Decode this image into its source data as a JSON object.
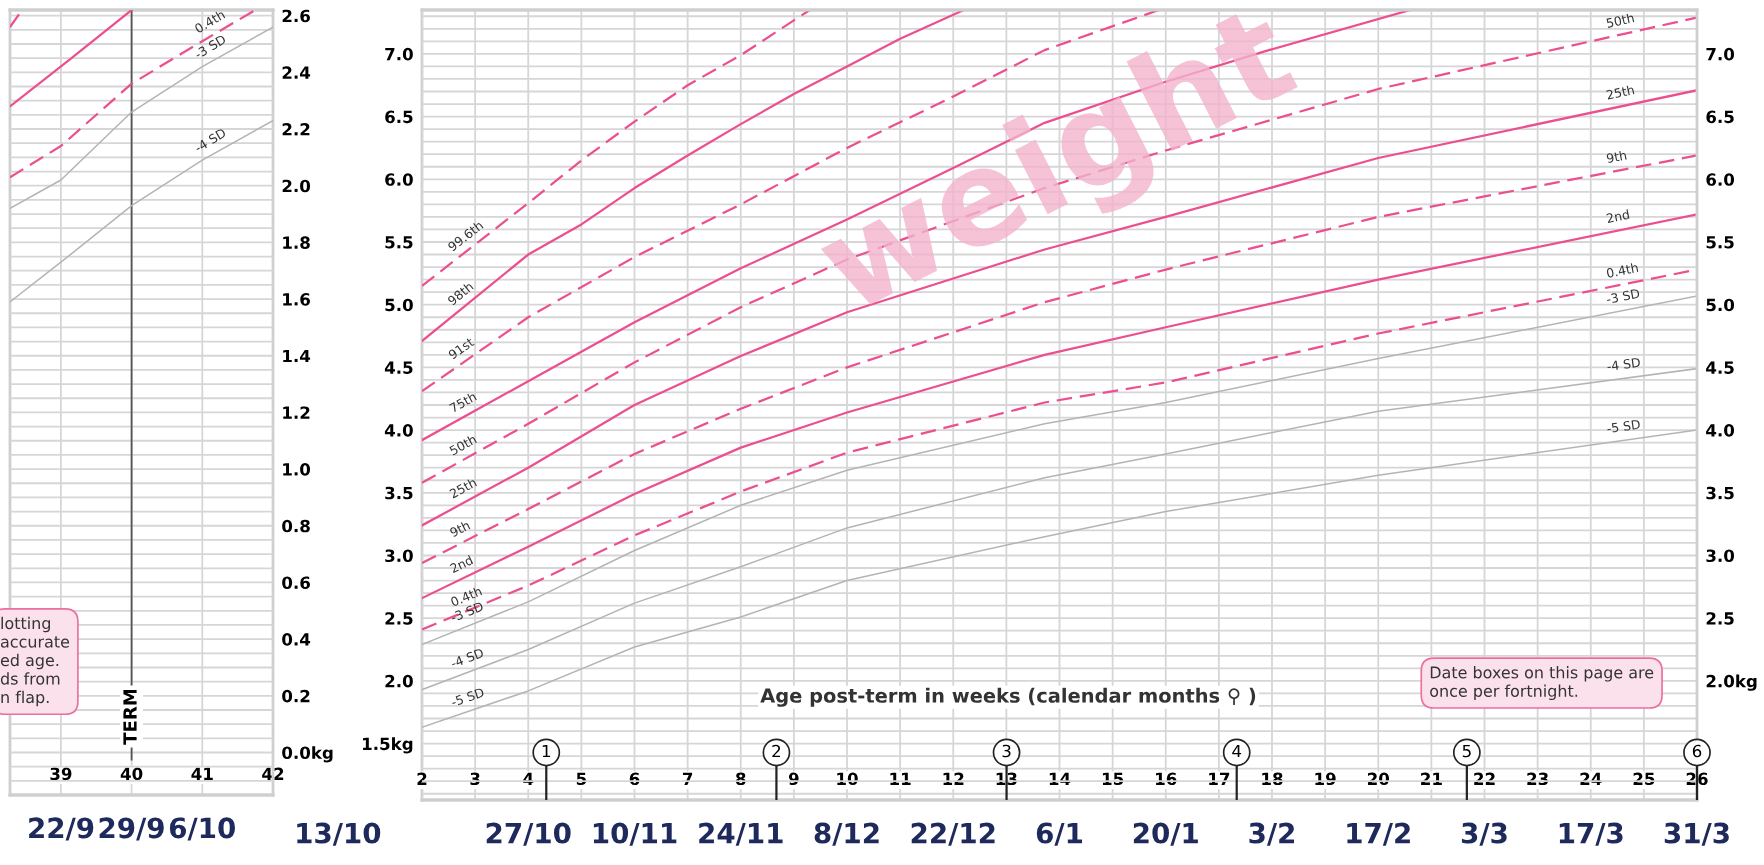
{
  "chart_data": [
    {
      "type": "line",
      "xlim": [
        38.28,
        42
      ],
      "xticks": [
        39,
        40,
        41,
        42
      ],
      "grid": true,
      "y2lim": [
        -0.15,
        2.62
      ],
      "y2ticks": [
        {
          "value": -0.1,
          "label": null
        },
        {
          "value": -0.05,
          "label": null
        },
        {
          "value": 0,
          "label": "0.0kg"
        },
        {
          "value": 0.05,
          "label": null
        },
        {
          "value": 0.1,
          "label": null
        },
        {
          "value": 0.15,
          "label": null
        },
        {
          "value": 0.2,
          "label": "0.2"
        },
        {
          "value": 0.25,
          "label": null
        },
        {
          "value": 0.3,
          "label": null
        },
        {
          "value": 0.35,
          "label": null
        },
        {
          "value": 0.4,
          "label": "0.4"
        },
        {
          "value": 0.45,
          "label": null
        },
        {
          "value": 0.5,
          "label": null
        },
        {
          "value": 0.55,
          "label": null
        },
        {
          "value": 0.6,
          "label": "0.6"
        },
        {
          "value": 0.65,
          "label": null
        },
        {
          "value": 0.7,
          "label": null
        },
        {
          "value": 0.75,
          "label": null
        },
        {
          "value": 0.8,
          "label": "0.8"
        },
        {
          "value": 0.85,
          "label": null
        },
        {
          "value": 0.9,
          "label": null
        },
        {
          "value": 0.95,
          "label": null
        },
        {
          "value": 1.0,
          "label": "1.0"
        },
        {
          "value": 1.05,
          "label": null
        },
        {
          "value": 1.1,
          "label": null
        },
        {
          "value": 1.15,
          "label": null
        },
        {
          "value": 1.2,
          "label": "1.2"
        },
        {
          "value": 1.25,
          "label": null
        },
        {
          "value": 1.3,
          "label": null
        },
        {
          "value": 1.35,
          "label": null
        },
        {
          "value": 1.4,
          "label": "1.4"
        },
        {
          "value": 1.45,
          "label": null
        },
        {
          "value": 1.5,
          "label": null
        },
        {
          "value": 1.55,
          "label": null
        },
        {
          "value": 1.6,
          "label": "1.6"
        },
        {
          "value": 1.65,
          "label": null
        },
        {
          "value": 1.7,
          "label": null
        },
        {
          "value": 1.75,
          "label": null
        },
        {
          "value": 1.8,
          "label": "1.8"
        },
        {
          "value": 1.85,
          "label": null
        },
        {
          "value": 1.9,
          "label": null
        },
        {
          "value": 1.95,
          "label": null
        },
        {
          "value": 2.0,
          "label": "2.0"
        },
        {
          "value": 2.05,
          "label": null
        },
        {
          "value": 2.1,
          "label": null
        },
        {
          "value": 2.15,
          "label": null
        },
        {
          "value": 2.2,
          "label": "2.2"
        },
        {
          "value": 2.25,
          "label": null
        },
        {
          "value": 2.3,
          "label": null
        },
        {
          "value": 2.35,
          "label": null
        },
        {
          "value": 2.4,
          "label": "2.4"
        },
        {
          "value": 2.45,
          "label": null
        },
        {
          "value": 2.5,
          "label": null
        },
        {
          "value": 2.55,
          "label": null
        },
        {
          "value": 2.6,
          "label": "2.6"
        }
      ],
      "ref_lines": [
        {
          "axis": "x",
          "value": 40,
          "label": "TERM",
          "color": "#555555"
        }
      ],
      "series": [
        {
          "axis": "y2",
          "color": "#ec4f8f",
          "line_style": "dashed",
          "x": [
            38.28,
            38.45
          ],
          "values": [
            2.56,
            2.62
          ]
        },
        {
          "axis": "y2",
          "color": "#ec4f8f",
          "line_style": "solid",
          "x": [
            38.28,
            39.15,
            40.0
          ],
          "values": [
            2.28,
            2.45,
            2.62
          ]
        },
        {
          "axis": "y2",
          "name": "0.4th",
          "color": "#ec4f8f",
          "line_style": "dashed",
          "x": [
            38.28,
            39,
            40,
            41,
            41.75
          ],
          "values": [
            2.03,
            2.14,
            2.36,
            2.51,
            2.62
          ]
        },
        {
          "axis": "y2",
          "name": "-3 SD",
          "color": "#b4b4b4",
          "line_style": "solid",
          "x": [
            38.28,
            39,
            40,
            41,
            42
          ],
          "values": [
            1.92,
            2.02,
            2.26,
            2.42,
            2.56
          ]
        },
        {
          "axis": "y2",
          "name": "-4 SD",
          "color": "#b4b4b4",
          "line_style": "solid",
          "x": [
            38.28,
            39,
            40,
            41,
            42
          ],
          "values": [
            1.59,
            1.73,
            1.93,
            2.09,
            2.23
          ]
        }
      ],
      "annotations": [
        "lotting\naccurate\ned age.\nds from\nn flap.",
        "22/9",
        "29/9",
        "6/10"
      ]
    },
    {
      "type": "line",
      "title": "weight",
      "xlabel": "Age post-term in weeks (calendar months ⚲ )",
      "grid": true,
      "xlim": [
        2,
        26
      ],
      "xticks": [
        2,
        3,
        4,
        5,
        6,
        7,
        8,
        9,
        10,
        11,
        12,
        13,
        14,
        15,
        16,
        17,
        18,
        19,
        20,
        21,
        22,
        23,
        24,
        25,
        26
      ],
      "x2lim": [
        0.46,
        6.0
      ],
      "x2ticks": [
        1,
        2,
        3,
        4,
        5,
        6
      ],
      "ylim": [
        1.05,
        7.35
      ],
      "yticks": [
        {
          "value": 1.1,
          "label": null
        },
        {
          "value": 1.2,
          "label": null
        },
        {
          "value": 1.3,
          "label": null
        },
        {
          "value": 1.4,
          "label": null
        },
        {
          "value": 1.5,
          "label": "1.5kg"
        },
        {
          "value": 1.6,
          "label": null
        },
        {
          "value": 1.7,
          "label": null
        },
        {
          "value": 1.8,
          "label": null
        },
        {
          "value": 1.9,
          "label": null
        },
        {
          "value": 2.0,
          "label": "2.0"
        },
        {
          "value": 2.1,
          "label": null
        },
        {
          "value": 2.2,
          "label": null
        },
        {
          "value": 2.3,
          "label": null
        },
        {
          "value": 2.4,
          "label": null
        },
        {
          "value": 2.5,
          "label": "2.5"
        },
        {
          "value": 2.6,
          "label": null
        },
        {
          "value": 2.7,
          "label": null
        },
        {
          "value": 2.8,
          "label": null
        },
        {
          "value": 2.9,
          "label": null
        },
        {
          "value": 3.0,
          "label": "3.0"
        },
        {
          "value": 3.1,
          "label": null
        },
        {
          "value": 3.2,
          "label": null
        },
        {
          "value": 3.3,
          "label": null
        },
        {
          "value": 3.4,
          "label": null
        },
        {
          "value": 3.5,
          "label": "3.5"
        },
        {
          "value": 3.6,
          "label": null
        },
        {
          "value": 3.7,
          "label": null
        },
        {
          "value": 3.8,
          "label": null
        },
        {
          "value": 3.9,
          "label": null
        },
        {
          "value": 4.0,
          "label": "4.0"
        },
        {
          "value": 4.1,
          "label": null
        },
        {
          "value": 4.2,
          "label": null
        },
        {
          "value": 4.3,
          "label": null
        },
        {
          "value": 4.4,
          "label": null
        },
        {
          "value": 4.5,
          "label": "4.5"
        },
        {
          "value": 4.6,
          "label": null
        },
        {
          "value": 4.7,
          "label": null
        },
        {
          "value": 4.8,
          "label": null
        },
        {
          "value": 4.9,
          "label": null
        },
        {
          "value": 5.0,
          "label": "5.0"
        },
        {
          "value": 5.1,
          "label": null
        },
        {
          "value": 5.2,
          "label": null
        },
        {
          "value": 5.3,
          "label": null
        },
        {
          "value": 5.4,
          "label": null
        },
        {
          "value": 5.5,
          "label": "5.5"
        },
        {
          "value": 5.6,
          "label": null
        },
        {
          "value": 5.7,
          "label": null
        },
        {
          "value": 5.8,
          "label": null
        },
        {
          "value": 5.9,
          "label": null
        },
        {
          "value": 6.0,
          "label": "6.0"
        },
        {
          "value": 6.1,
          "label": null
        },
        {
          "value": 6.2,
          "label": null
        },
        {
          "value": 6.3,
          "label": null
        },
        {
          "value": 6.4,
          "label": null
        },
        {
          "value": 6.5,
          "label": "6.5"
        },
        {
          "value": 6.6,
          "label": null
        },
        {
          "value": 6.7,
          "label": null
        },
        {
          "value": 6.8,
          "label": null
        },
        {
          "value": 6.9,
          "label": null
        },
        {
          "value": 7.0,
          "label": "7.0"
        },
        {
          "value": 7.1,
          "label": null
        },
        {
          "value": 7.2,
          "label": null
        },
        {
          "value": 7.3,
          "label": null
        }
      ],
      "y2lim": [
        1.05,
        7.35
      ],
      "y2ticks": [
        {
          "value": 2.0,
          "label": "2.0kg"
        },
        {
          "value": 2.5,
          "label": "2.5"
        },
        {
          "value": 3.0,
          "label": "3.0"
        },
        {
          "value": 3.5,
          "label": "3.5"
        },
        {
          "value": 4.0,
          "label": "4.0"
        },
        {
          "value": 4.5,
          "label": "4.5"
        },
        {
          "value": 5.0,
          "label": "5.0"
        },
        {
          "value": 5.5,
          "label": "5.5"
        },
        {
          "value": 6.0,
          "label": "6.0"
        },
        {
          "value": 6.5,
          "label": "6.5"
        },
        {
          "value": 7.0,
          "label": "7.0"
        }
      ],
      "x": [
        2,
        4,
        6,
        8,
        10,
        13.72,
        16,
        20,
        26
      ],
      "series": [
        {
          "name": "99.6th",
          "color": "#ec4f8f",
          "line_style": "dashed",
          "x": [
            2,
            4,
            5,
            6,
            7,
            8,
            9.3
          ],
          "values": [
            5.15,
            5.81,
            6.15,
            6.46,
            6.75,
            6.99,
            7.35
          ]
        },
        {
          "name": "98th",
          "color": "#ec4f8f",
          "line_style": "solid",
          "x": [
            2,
            4,
            5,
            6,
            7,
            8,
            9,
            10,
            11,
            12.2
          ],
          "values": [
            4.71,
            5.4,
            5.64,
            5.93,
            6.19,
            6.44,
            6.68,
            6.9,
            7.12,
            7.35
          ]
        },
        {
          "name": "91st",
          "color": "#ec4f8f",
          "line_style": "dashed",
          "x": [
            2,
            4,
            6,
            8,
            10,
            12,
            13.72,
            15.87
          ],
          "values": [
            4.31,
            4.9,
            5.38,
            5.8,
            6.25,
            6.66,
            7.03,
            7.35
          ]
        },
        {
          "name": "75th",
          "color": "#ec4f8f",
          "line_style": "solid",
          "x": [
            2,
            4,
            6,
            8,
            10,
            12,
            13.72,
            15.94,
            17.94,
            20.6
          ],
          "values": [
            3.92,
            4.39,
            4.86,
            5.29,
            5.68,
            6.09,
            6.45,
            6.77,
            7.03,
            7.35
          ]
        },
        {
          "name": "50th",
          "color": "#ec4f8f",
          "line_style": "dashed",
          "values": [
            3.58,
            4.05,
            4.54,
            4.98,
            5.36,
            5.93,
            6.23,
            6.72,
            7.29
          ]
        },
        {
          "name": "25th",
          "color": "#ec4f8f",
          "line_style": "solid",
          "values": [
            3.24,
            3.7,
            4.2,
            4.59,
            4.94,
            5.44,
            5.7,
            6.17,
            6.71
          ]
        },
        {
          "name": "9th",
          "color": "#ec4f8f",
          "line_style": "dashed",
          "values": [
            2.94,
            3.37,
            3.81,
            4.17,
            4.5,
            5.02,
            5.28,
            5.7,
            6.19
          ]
        },
        {
          "name": "2nd",
          "color": "#ec4f8f",
          "line_style": "solid",
          "values": [
            2.66,
            3.07,
            3.49,
            3.86,
            4.14,
            4.6,
            4.82,
            5.2,
            5.72
          ]
        },
        {
          "name": "0.4th",
          "color": "#ec4f8f",
          "line_style": "dashed",
          "values": [
            2.41,
            2.76,
            3.16,
            3.51,
            3.82,
            4.22,
            4.38,
            4.77,
            5.28
          ]
        },
        {
          "name": "-3 SD",
          "color": "#b4b4b4",
          "line_style": "solid",
          "values": [
            2.29,
            2.63,
            3.04,
            3.4,
            3.68,
            4.05,
            4.22,
            4.57,
            5.07
          ]
        },
        {
          "name": "-4 SD",
          "color": "#b4b4b4",
          "line_style": "solid",
          "values": [
            1.93,
            2.25,
            2.62,
            2.91,
            3.22,
            3.62,
            3.81,
            4.15,
            4.49
          ]
        },
        {
          "name": "-5 SD",
          "color": "#b4b4b4",
          "line_style": "solid",
          "values": [
            1.63,
            1.92,
            2.27,
            2.51,
            2.8,
            3.15,
            3.35,
            3.64,
            4.0
          ]
        }
      ],
      "annotations": [
        "Date boxes on this page are\nonce per fortnight.",
        "13/10",
        "27/10",
        "10/11",
        "24/11",
        "8/12",
        "22/12",
        "6/1",
        "20/1",
        "3/2",
        "17/2",
        "3/3",
        "17/3",
        "31/3"
      ]
    }
  ]
}
